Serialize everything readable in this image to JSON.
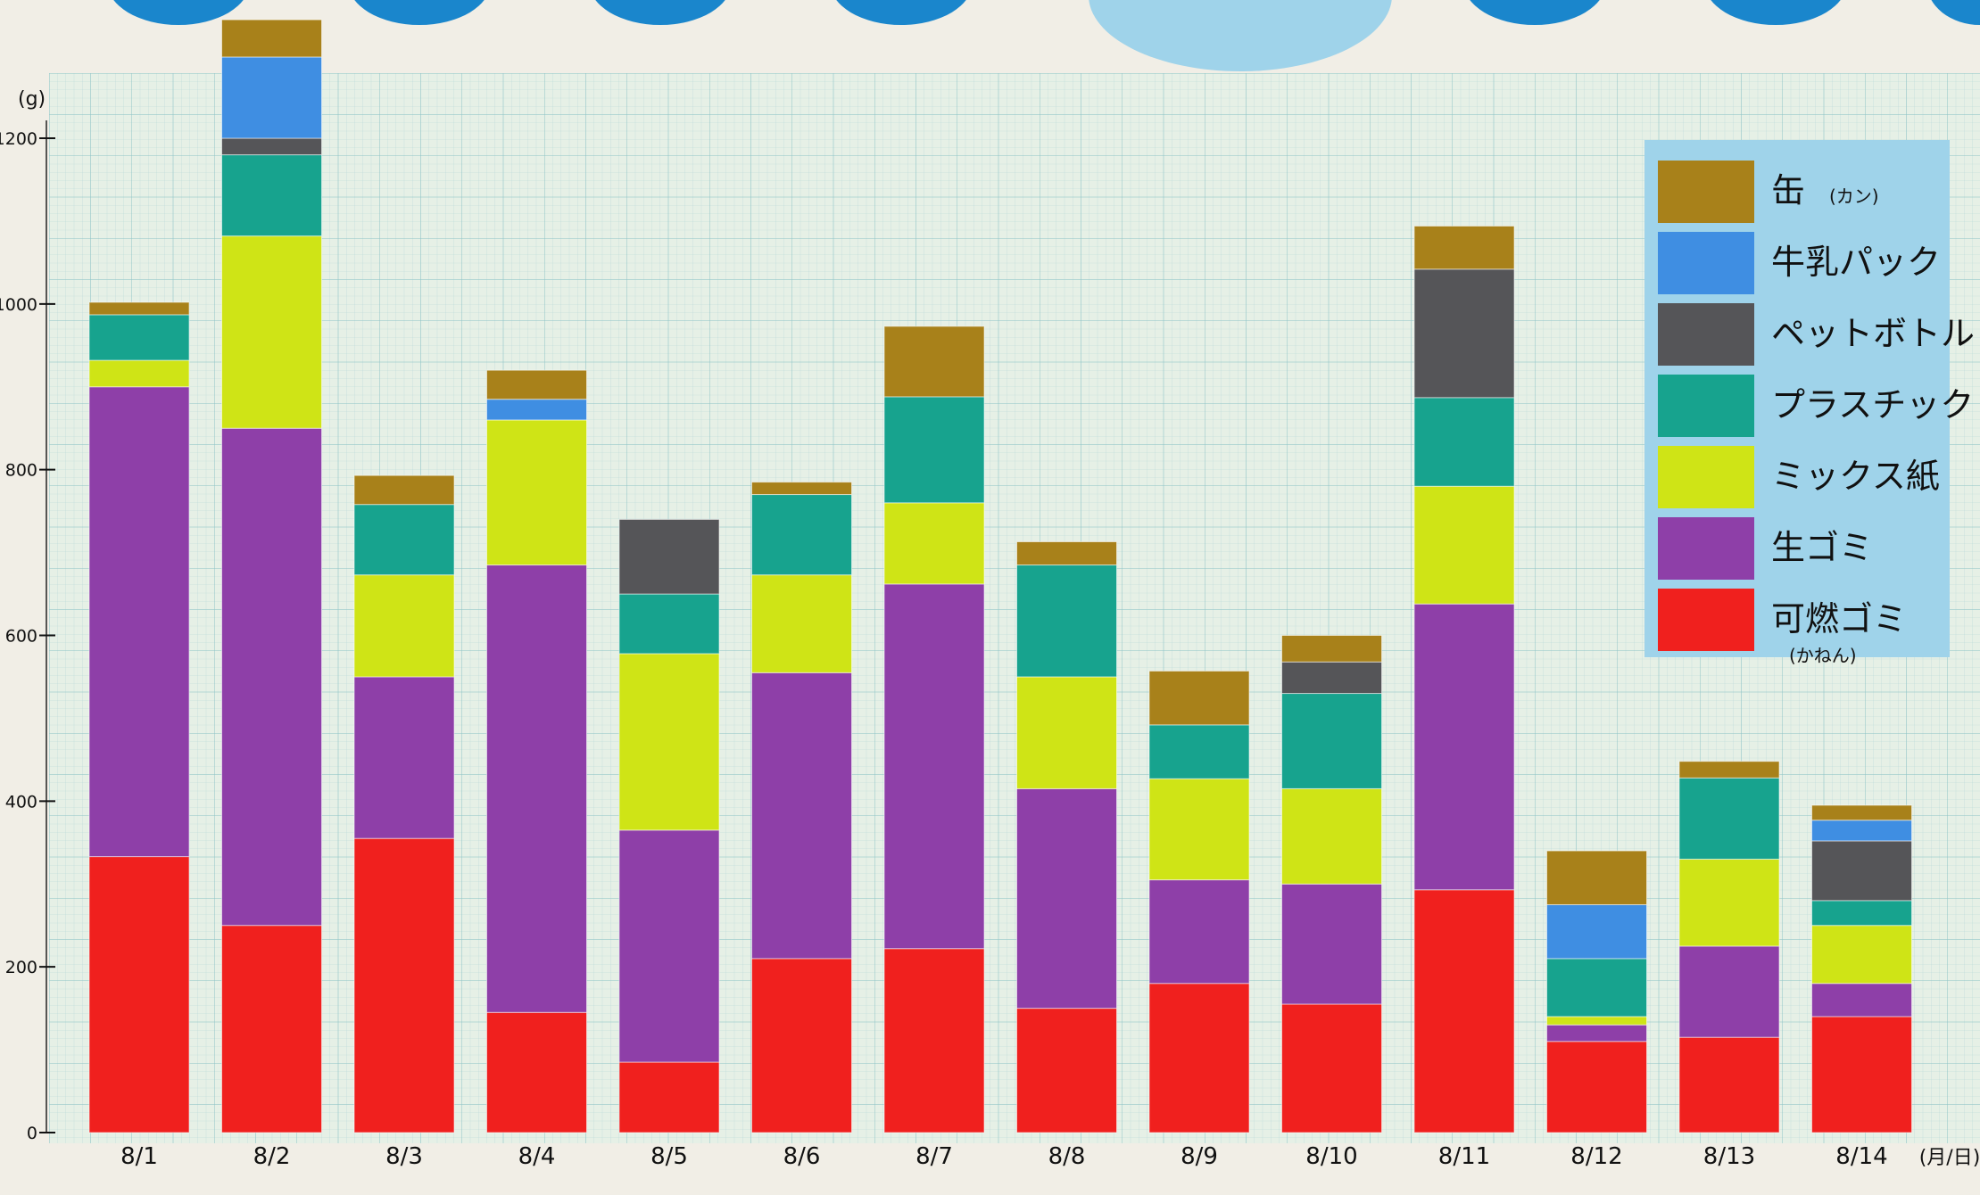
{
  "chart_data": {
    "type": "bar",
    "stacked": true,
    "y_unit": "(g)",
    "x_unit": "(月/日)",
    "ylim": [
      0,
      1260
    ],
    "yticks": [
      0,
      200,
      400,
      600,
      800,
      1000,
      1200
    ],
    "grid": true,
    "legend_position": "top-right",
    "categories": [
      "8/1",
      "8/2",
      "8/3",
      "8/4",
      "8/5",
      "8/6",
      "8/7",
      "8/8",
      "8/9",
      "8/10",
      "8/11",
      "8/12",
      "8/13",
      "8/14"
    ],
    "series": [
      {
        "name": "可燃ゴミ",
        "name_note": "(かねん)",
        "color": "#f0201e",
        "values": [
          333,
          250,
          355,
          145,
          85,
          210,
          222,
          150,
          180,
          155,
          293,
          110,
          115,
          140
        ]
      },
      {
        "name": "生ゴミ",
        "color": "#8e3fa8",
        "values": [
          567,
          600,
          195,
          540,
          280,
          345,
          440,
          265,
          125,
          145,
          345,
          20,
          110,
          40
        ]
      },
      {
        "name": "ミックス紙",
        "color": "#cfe416",
        "values": [
          32,
          232,
          123,
          175,
          213,
          118,
          98,
          135,
          122,
          115,
          142,
          10,
          105,
          70
        ]
      },
      {
        "name": "プラスチック",
        "color": "#17a38e",
        "values": [
          55,
          98,
          85,
          0,
          72,
          97,
          128,
          135,
          65,
          115,
          107,
          70,
          98,
          30
        ]
      },
      {
        "name": "ペットボトル",
        "color": "#555558",
        "values": [
          0,
          20,
          0,
          0,
          90,
          0,
          0,
          0,
          0,
          38,
          155,
          0,
          0,
          72
        ]
      },
      {
        "name": "牛乳パック",
        "color": "#3f8ee2",
        "values": [
          0,
          98,
          0,
          25,
          0,
          0,
          0,
          0,
          0,
          0,
          0,
          65,
          0,
          25
        ]
      },
      {
        "name": "缶",
        "name_note": "(カン)",
        "color": "#a8811a",
        "values": [
          15,
          45,
          35,
          35,
          0,
          15,
          85,
          28,
          65,
          32,
          52,
          65,
          20,
          18
        ]
      }
    ]
  }
}
